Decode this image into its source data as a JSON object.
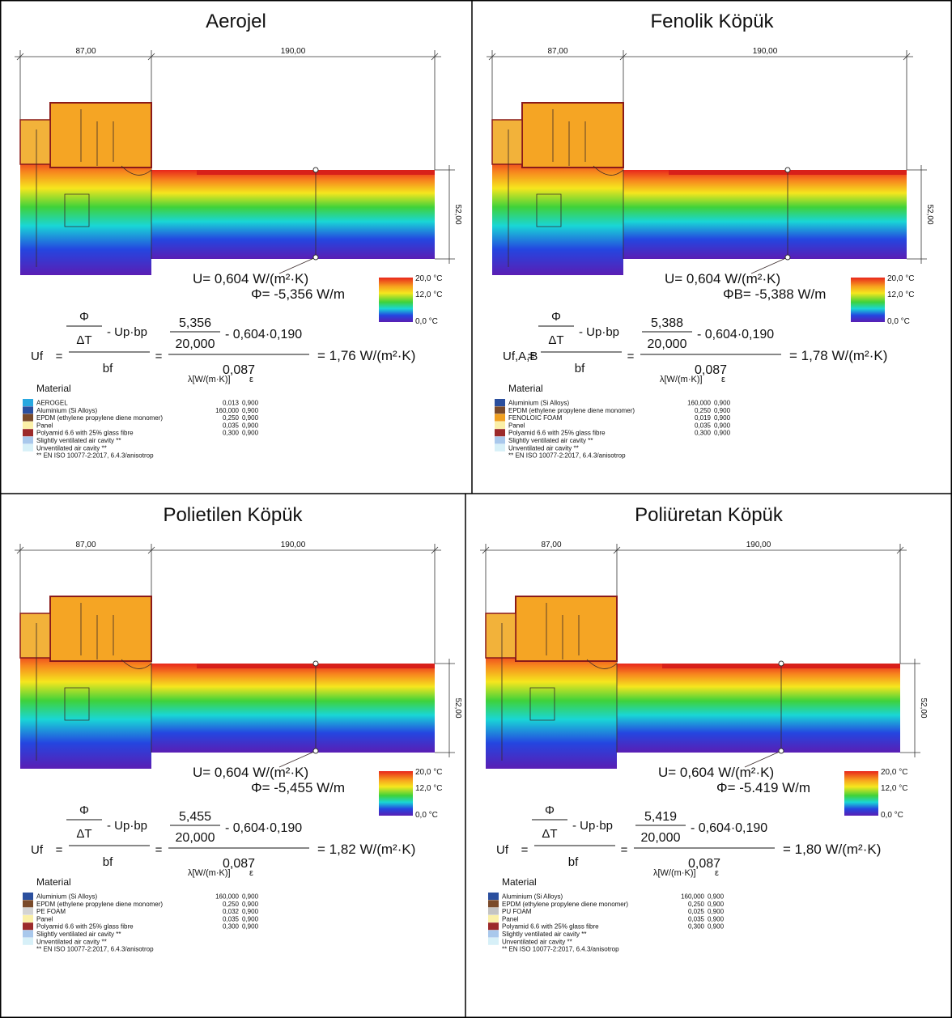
{
  "panels": [
    {
      "title": "Aerojel",
      "dim_left": "87,00",
      "dim_right": "190,00",
      "dim_height": "52,00",
      "u_label": "U= 0,604 W/(m²·K)",
      "phi_label": "Φ= -5,356 W/m",
      "scale": [
        "20,0 °C",
        "12,0 °C",
        "0,0 °C"
      ],
      "formula": {
        "lhs": "Uf",
        "phi": "Φ",
        "dt": "ΔT",
        "minus_ub": "- Up·bp",
        "bf": "bf",
        "eq": "=",
        "num": "5,356",
        "den": "20,000",
        "minus_val": "- 0,604·0,190",
        "den2": "0,087",
        "result": "= 1,76 W/(m²·K)"
      },
      "material_header": "Material",
      "lambda_header": "λ[W/(m·K)]",
      "eps_header": "ε",
      "materials": [
        {
          "name": "AEROGEL",
          "lambda": "0,013",
          "epsilon": "0,900",
          "color": "#29a8e0"
        },
        {
          "name": "Aluminium (Si Alloys)",
          "lambda": "160,000",
          "epsilon": "0,900",
          "color": "#2b4f9e"
        },
        {
          "name": "EPDM (ethylene propylene diene monomer)",
          "lambda": "0,250",
          "epsilon": "0,900",
          "color": "#7a4a2a"
        },
        {
          "name": "Panel",
          "lambda": "0,035",
          "epsilon": "0,900",
          "color": "#fbf0a8"
        },
        {
          "name": "Polyamid 6.6 with 25% glass fibre",
          "lambda": "0,300",
          "epsilon": "0,900",
          "color": "#9c2a2a"
        },
        {
          "name": "Slightly ventilated air cavity **",
          "color": "#a9c8ec"
        },
        {
          "name": "Unventilated air cavity **",
          "color": "#d7f0f8"
        }
      ],
      "note": "** EN ISO 10077-2:2017, 6.4.3/anisotrop"
    },
    {
      "title": "Fenolik Köpük",
      "dim_left": "87,00",
      "dim_right": "190,00",
      "dim_height": "52,00",
      "u_label": "U= 0,604 W/(m²·K)",
      "phi_label": "ΦB= -5,388 W/m",
      "scale": [
        "20,0 °C",
        "12,0 °C",
        "0,0 °C"
      ],
      "formula": {
        "lhs": "Uf,A,B",
        "phi": "Φ",
        "dt": "ΔT",
        "minus_ub": "- Up·bp",
        "bf": "bf",
        "eq": "=",
        "num": "5,388",
        "den": "20,000",
        "minus_val": "- 0,604·0,190",
        "den2": "0,087",
        "result": "= 1,78 W/(m²·K)"
      },
      "material_header": "Material",
      "lambda_header": "λ[W/(m·K)]",
      "eps_header": "ε",
      "materials": [
        {
          "name": "Aluminium (Si Alloys)",
          "lambda": "160,000",
          "epsilon": "0,900",
          "color": "#2b4f9e"
        },
        {
          "name": "EPDM (ethylene propylene diene monomer)",
          "lambda": "0,250",
          "epsilon": "0,900",
          "color": "#7a4a2a"
        },
        {
          "name": "FENOLOIC FOAM",
          "lambda": "0,019",
          "epsilon": "0,900",
          "color": "#f0a020"
        },
        {
          "name": "Panel",
          "lambda": "0,035",
          "epsilon": "0,900",
          "color": "#fbf0a8"
        },
        {
          "name": "Polyamid 6.6 with 25% glass fibre",
          "lambda": "0,300",
          "epsilon": "0,900",
          "color": "#9c2a2a"
        },
        {
          "name": "Slightly ventilated air cavity **",
          "color": "#a9c8ec"
        },
        {
          "name": "Unventilated air cavity **",
          "color": "#d7f0f8"
        }
      ],
      "note": "** EN ISO 10077-2:2017, 6.4.3/anisotrop"
    },
    {
      "title": "Polietilen Köpük",
      "dim_left": "87,00",
      "dim_right": "190,00",
      "dim_height": "52,00",
      "u_label": "U= 0,604 W/(m²·K)",
      "phi_label": "Φ= -5,455 W/m",
      "scale": [
        "20,0 °C",
        "12,0 °C",
        "0,0 °C"
      ],
      "formula": {
        "lhs": "Uf",
        "phi": "Φ",
        "dt": "ΔT",
        "minus_ub": "- Up·bp",
        "bf": "bf",
        "eq": "=",
        "num": "5,455",
        "den": "20,000",
        "minus_val": "- 0,604·0,190",
        "den2": "0,087",
        "result": "= 1,82 W/(m²·K)"
      },
      "material_header": "Material",
      "lambda_header": "λ[W/(m·K)]",
      "eps_header": "ε",
      "materials": [
        {
          "name": "Aluminium (Si Alloys)",
          "lambda": "160,000",
          "epsilon": "0,900",
          "color": "#2b4f9e"
        },
        {
          "name": "EPDM (ethylene propylene diene monomer)",
          "lambda": "0,250",
          "epsilon": "0,900",
          "color": "#7a4a2a"
        },
        {
          "name": "PE FOAM",
          "lambda": "0,032",
          "epsilon": "0,900",
          "color": "#d4d4d4"
        },
        {
          "name": "Panel",
          "lambda": "0,035",
          "epsilon": "0,900",
          "color": "#fbf0a8"
        },
        {
          "name": "Polyamid 6.6 with 25% glass fibre",
          "lambda": "0,300",
          "epsilon": "0,900",
          "color": "#9c2a2a"
        },
        {
          "name": "Slightly ventilated air cavity **",
          "color": "#a9c8ec"
        },
        {
          "name": "Unventilated air cavity **",
          "color": "#d7f0f8"
        }
      ],
      "note": "** EN ISO 10077-2:2017, 6.4.3/anisotrop"
    },
    {
      "title": "Poliüretan Köpük",
      "dim_left": "87,00",
      "dim_right": "190,00",
      "dim_height": "52,00",
      "u_label": "U= 0,604 W/(m²·K)",
      "phi_label": "Φ= -5.419 W/m",
      "scale": [
        "20,0 °C",
        "12,0 °C",
        "0,0 °C"
      ],
      "formula": {
        "lhs": "Uf",
        "phi": "Φ",
        "dt": "ΔT",
        "minus_ub": "- Up·bp",
        "bf": "bf",
        "eq": "=",
        "num": "5,419",
        "den": "20,000",
        "minus_val": "- 0,604·0,190",
        "den2": "0,087",
        "result": "= 1,80 W/(m²·K)"
      },
      "material_header": "Material",
      "lambda_header": "λ[W/(m·K)]",
      "eps_header": "ε",
      "materials": [
        {
          "name": "Aluminium (Si Alloys)",
          "lambda": "160,000",
          "epsilon": "0,900",
          "color": "#2b4f9e"
        },
        {
          "name": "EPDM (ethylene propylene diene monomer)",
          "lambda": "0,250",
          "epsilon": "0,900",
          "color": "#7a4a2a"
        },
        {
          "name": "PU FOAM",
          "lambda": "0,025",
          "epsilon": "0,900",
          "color": "#c4c4c4"
        },
        {
          "name": "Panel",
          "lambda": "0,035",
          "epsilon": "0,900",
          "color": "#fbf0a8"
        },
        {
          "name": "Polyamid 6.6 with 25% glass fibre",
          "lambda": "0,300",
          "epsilon": "0,900",
          "color": "#9c2a2a"
        },
        {
          "name": "Slightly ventilated air cavity **",
          "color": "#a9c8ec"
        },
        {
          "name": "Unventilated air cavity **",
          "color": "#d7f0f8"
        }
      ],
      "note": "** EN ISO 10077-2:2017, 6.4.3/anisotrop"
    }
  ]
}
